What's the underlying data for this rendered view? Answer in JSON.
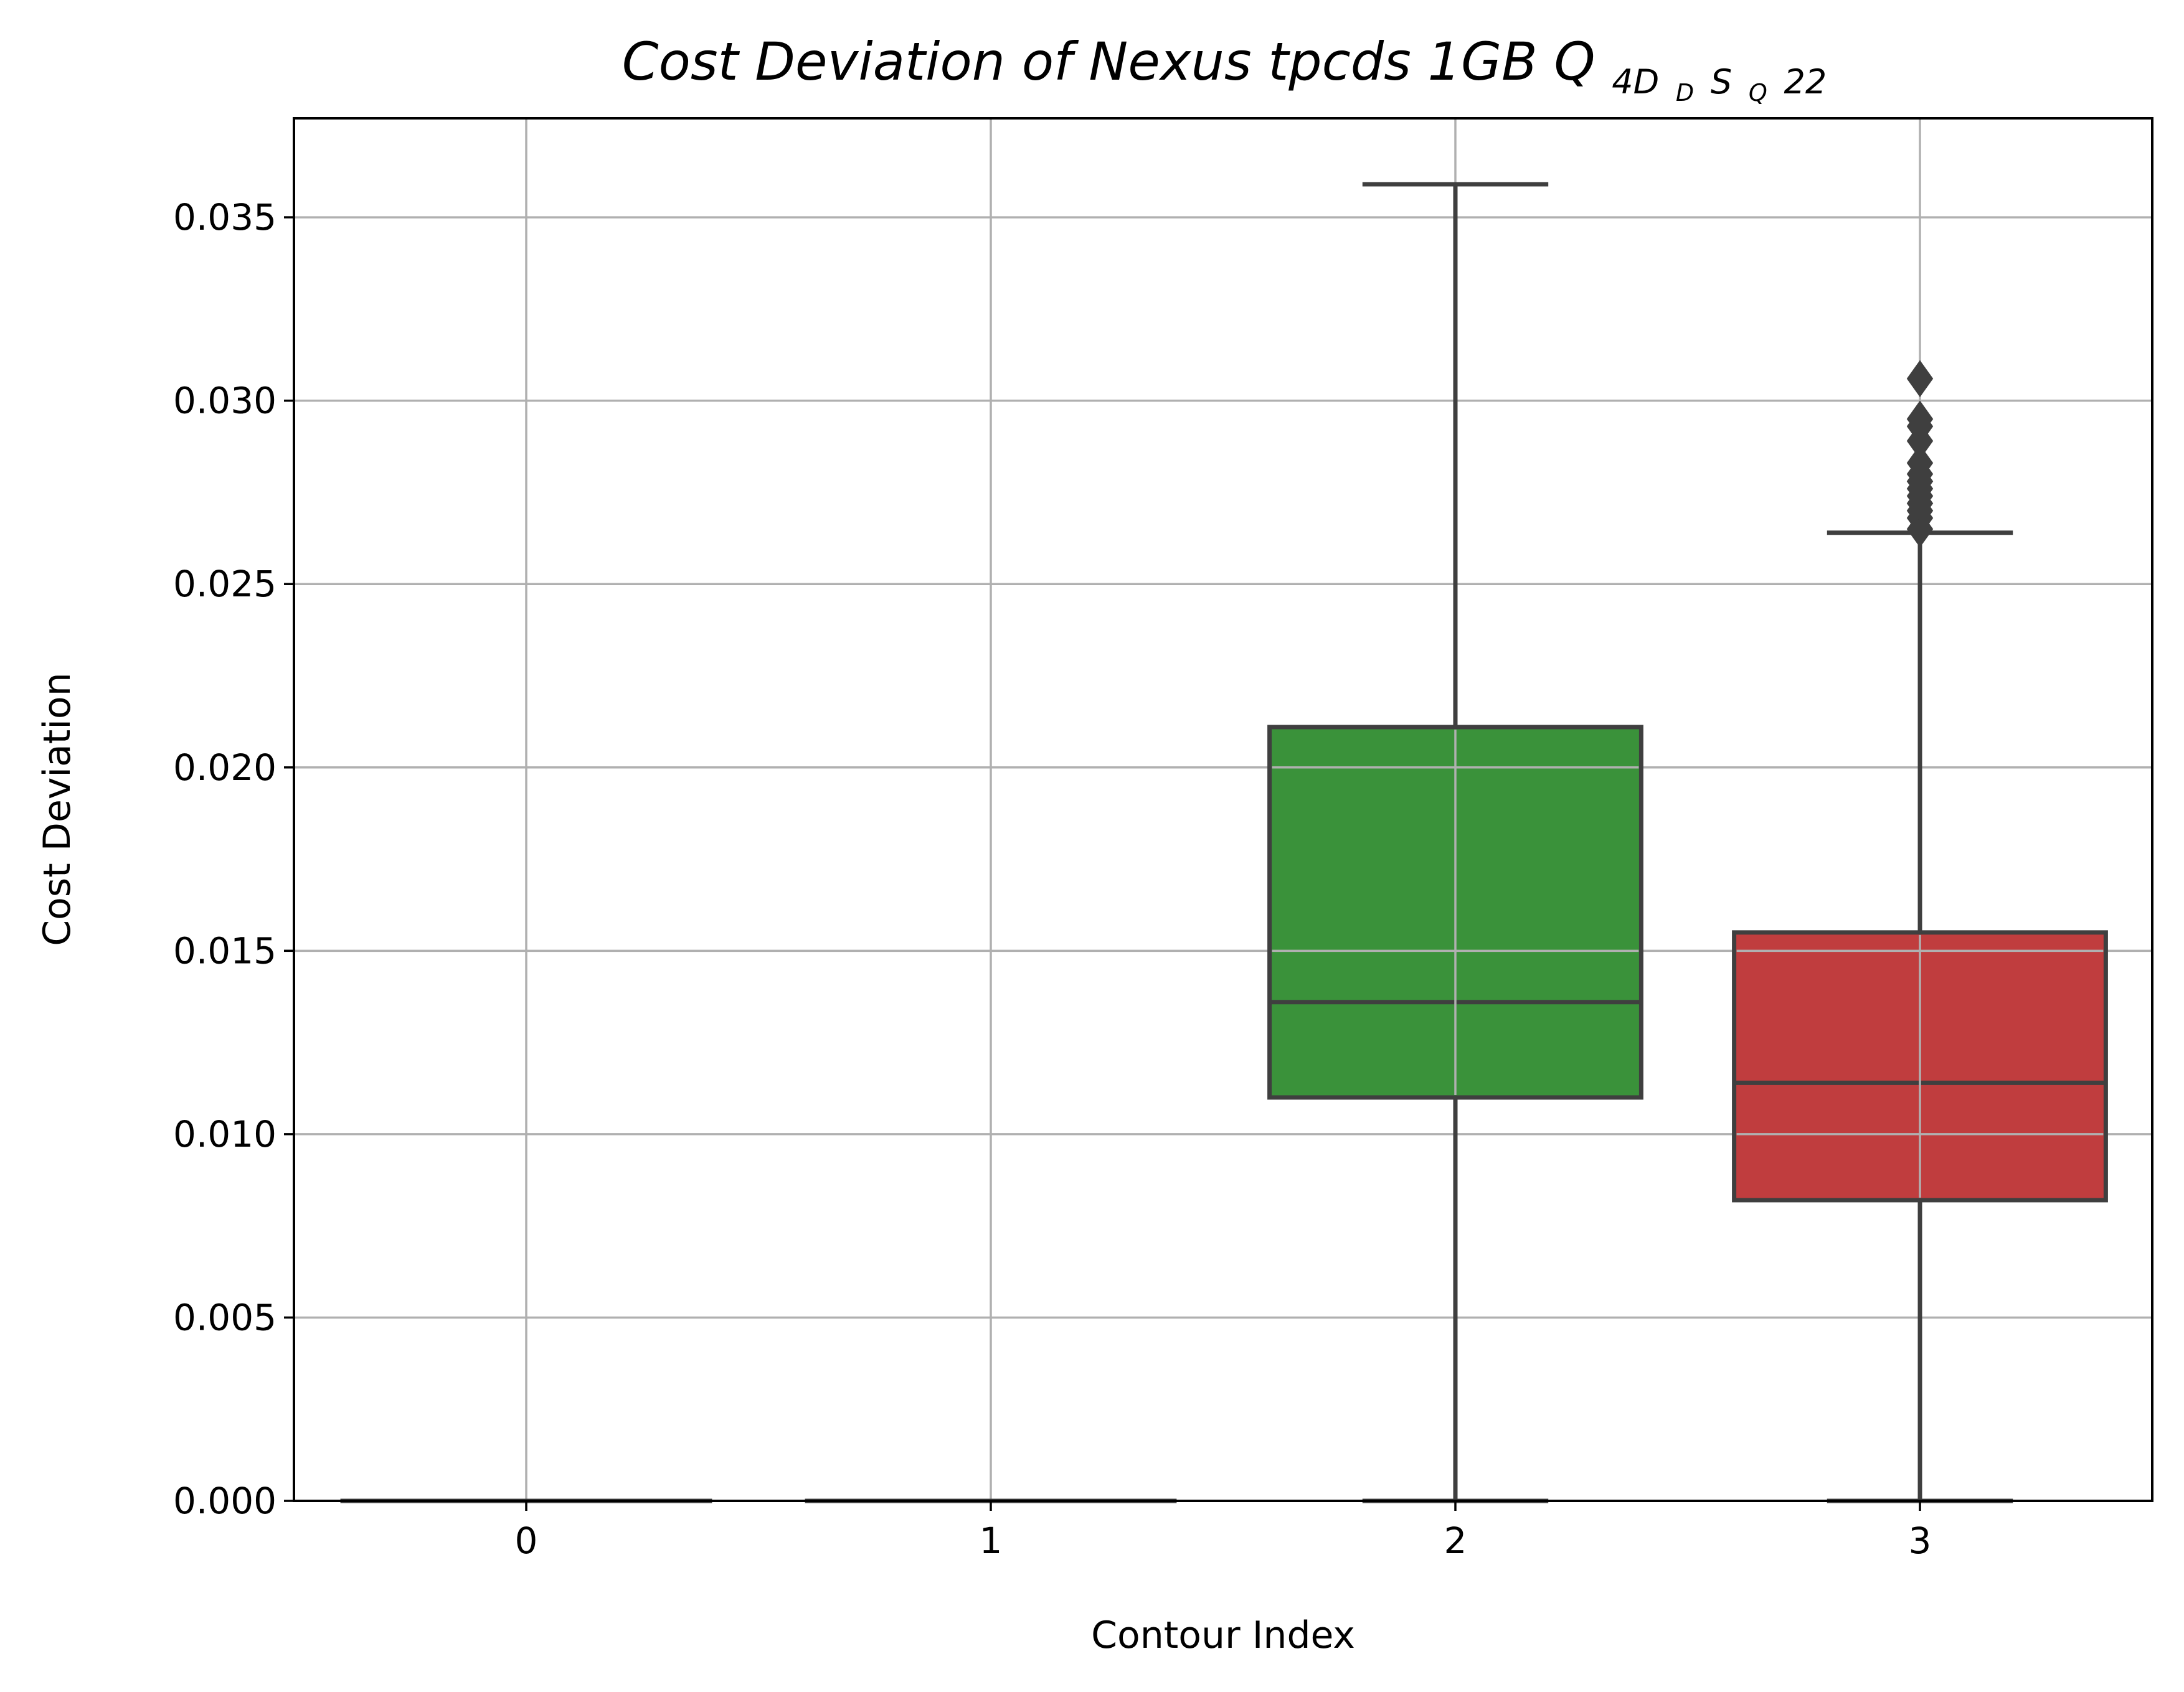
{
  "chart_data": {
    "type": "box",
    "title": {
      "main": "Cost Deviation of Nexus tpcds  1GB  ",
      "symbol": "Q",
      "sub_1": "4D",
      "sub_2": "D",
      "sub_3": "S",
      "sub_4": "Q",
      "suffix": "22"
    },
    "xlabel": "Contour Index",
    "ylabel": "Cost Deviation",
    "categories": [
      "0",
      "1",
      "2",
      "3"
    ],
    "ylim": [
      0,
      0.0377
    ],
    "yticks": [
      0.0,
      0.005,
      0.01,
      0.015,
      0.02,
      0.025,
      0.03,
      0.035
    ],
    "ytick_labels": [
      "0.000",
      "0.005",
      "0.010",
      "0.015",
      "0.020",
      "0.025",
      "0.030",
      "0.035"
    ],
    "grid": true,
    "boxes": [
      {
        "category": "0",
        "whisker_low": 0,
        "q1": 0,
        "median": 0,
        "q3": 0,
        "whisker_high": 0,
        "color": "#1f77b4",
        "outliers": []
      },
      {
        "category": "1",
        "whisker_low": 0,
        "q1": 0,
        "median": 0,
        "q3": 0,
        "whisker_high": 0,
        "color": "#ff7f0e",
        "outliers": []
      },
      {
        "category": "2",
        "whisker_low": 0,
        "q1": 0.011,
        "median": 0.0136,
        "q3": 0.0211,
        "whisker_high": 0.0359,
        "color": "#3a923a",
        "outliers": []
      },
      {
        "category": "3",
        "whisker_low": 0,
        "q1": 0.0082,
        "median": 0.0114,
        "q3": 0.0155,
        "whisker_high": 0.0264,
        "color": "#c03d3e",
        "outliers": [
          0.0265,
          0.0268,
          0.027,
          0.0272,
          0.0274,
          0.0276,
          0.0278,
          0.028,
          0.0283,
          0.0289,
          0.0293,
          0.0295,
          0.0306
        ]
      }
    ]
  }
}
